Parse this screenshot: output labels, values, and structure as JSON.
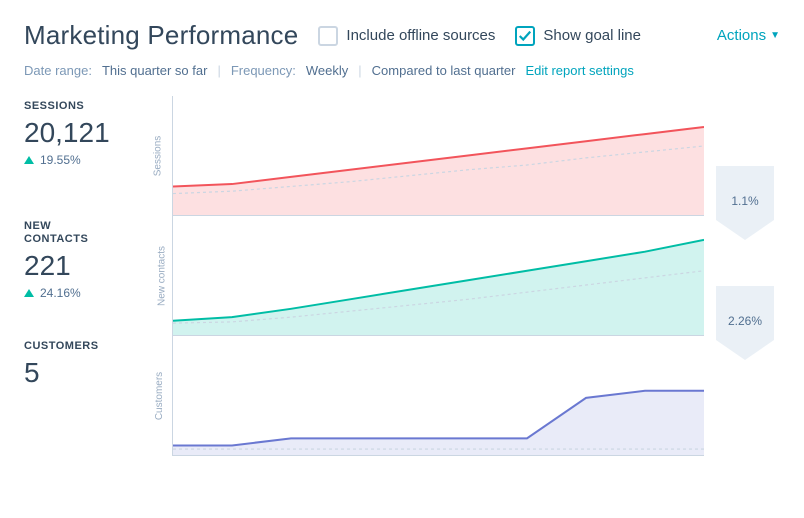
{
  "header": {
    "title": "Marketing Performance",
    "include_offline_label": "Include offline sources",
    "include_offline_checked": false,
    "show_goal_label": "Show goal line",
    "show_goal_checked": true,
    "actions_label": "Actions"
  },
  "meta": {
    "date_label": "Date range:",
    "date_value": "This quarter so far",
    "freq_label": "Frequency:",
    "freq_value": "Weekly",
    "compare_label": "Compared to last quarter",
    "edit_link": "Edit report settings"
  },
  "colors": {
    "text_primary": "#33475b",
    "text_secondary": "#7c98b6",
    "accent": "#00a4bd",
    "grid": "#e5eaf0",
    "chevron_fill": "#eaf0f6",
    "positive": "#00bda5"
  },
  "funnel": [
    {
      "pct": "1.1%"
    },
    {
      "pct": "2.26%"
    }
  ],
  "metrics": [
    {
      "name": "SESSIONS",
      "value": "20,121",
      "delta": "19.55%",
      "ylabel": "Sessions",
      "chart": {
        "type": "area",
        "stroke": "#f2545b",
        "fill": "#f2545b",
        "fill_opacity": 0.18,
        "prev_stroke": "#cbd6e2",
        "series_y": [
          76,
          74,
          68,
          62,
          56,
          50,
          44,
          38,
          32,
          26
        ],
        "prev_y": [
          82,
          80,
          76,
          72,
          67,
          62,
          58,
          52,
          47,
          42
        ],
        "stroke_width": 2
      }
    },
    {
      "name": "NEW CONTACTS",
      "value": "221",
      "delta": "24.16%",
      "ylabel": "New contacts",
      "chart": {
        "type": "area",
        "stroke": "#00bda5",
        "fill": "#00bda5",
        "fill_opacity": 0.18,
        "prev_stroke": "#cbd6e2",
        "series_y": [
          88,
          85,
          78,
          70,
          62,
          54,
          46,
          38,
          30,
          20
        ],
        "prev_y": [
          90,
          89,
          85,
          80,
          75,
          70,
          64,
          58,
          52,
          46
        ],
        "stroke_width": 2
      }
    },
    {
      "name": "CUSTOMERS",
      "value": "5",
      "delta": "",
      "ylabel": "Customers",
      "chart": {
        "type": "area",
        "stroke": "#6a78d1",
        "fill": "#6a78d1",
        "fill_opacity": 0.15,
        "prev_stroke": "#cbd6e2",
        "series_y": [
          92,
          92,
          86,
          86,
          86,
          86,
          86,
          52,
          46,
          46
        ],
        "prev_y": [
          95,
          95,
          95,
          95,
          95,
          95,
          95,
          95,
          95,
          95
        ],
        "stroke_width": 2
      }
    }
  ]
}
